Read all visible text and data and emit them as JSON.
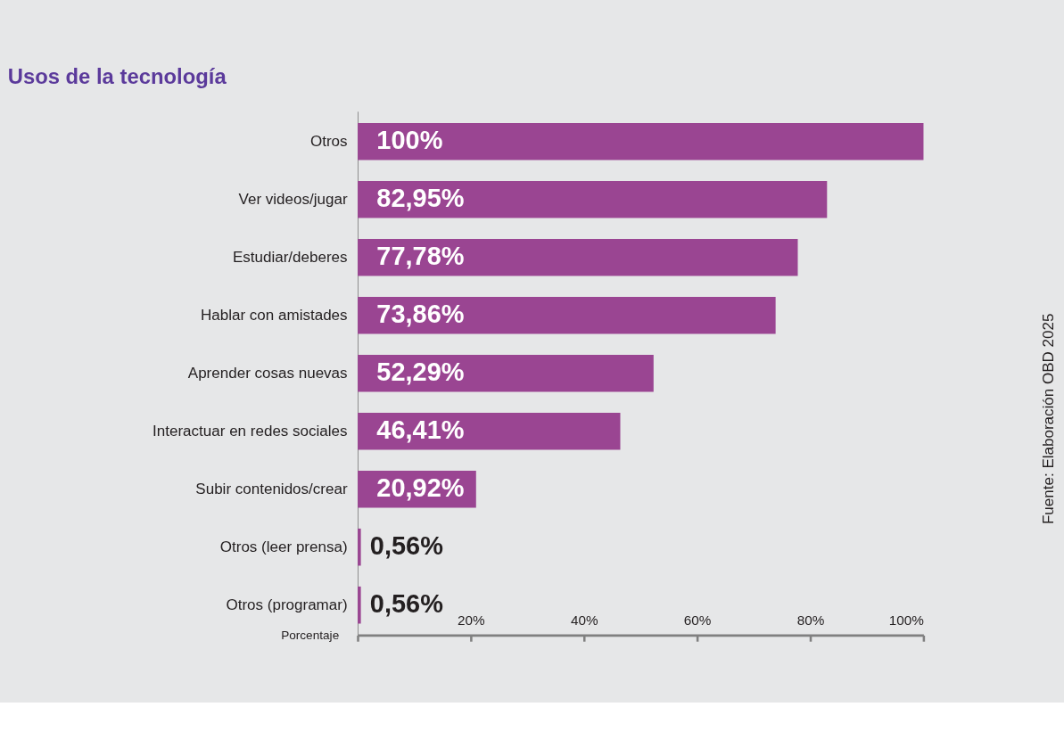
{
  "chart_data": {
    "type": "bar",
    "orientation": "horizontal",
    "title": "Usos de la tecnología",
    "xlabel": "Porcentaje",
    "categories": [
      "Otros",
      "Ver videos/jugar",
      "Estudiar/deberes",
      "Hablar con amistades",
      "Aprender cosas nuevas",
      "Interactuar en redes sociales",
      "Subir contenidos/crear",
      "Otros (leer prensa)",
      "Otros (programar)"
    ],
    "values": [
      100,
      82.95,
      77.78,
      73.86,
      52.29,
      46.41,
      20.92,
      0.56,
      0.56
    ],
    "value_labels": [
      "100%",
      "82,95%",
      "77,78%",
      "73,86%",
      "52,29%",
      "46,41%",
      "20,92%",
      "0,56%",
      "0,56%"
    ],
    "color": "#9a4592",
    "xlim": [
      0,
      100
    ],
    "xticks": [
      {
        "value": 0,
        "label": null
      },
      {
        "value": 20,
        "label": "20%"
      },
      {
        "value": 40,
        "label": "40%"
      },
      {
        "value": 60,
        "label": "60%"
      },
      {
        "value": 80,
        "label": "80%"
      },
      {
        "value": 100,
        "label": "100%"
      }
    ],
    "grid": false,
    "annotations": [
      "Fuente: Elaboración OBD 2025"
    ]
  }
}
